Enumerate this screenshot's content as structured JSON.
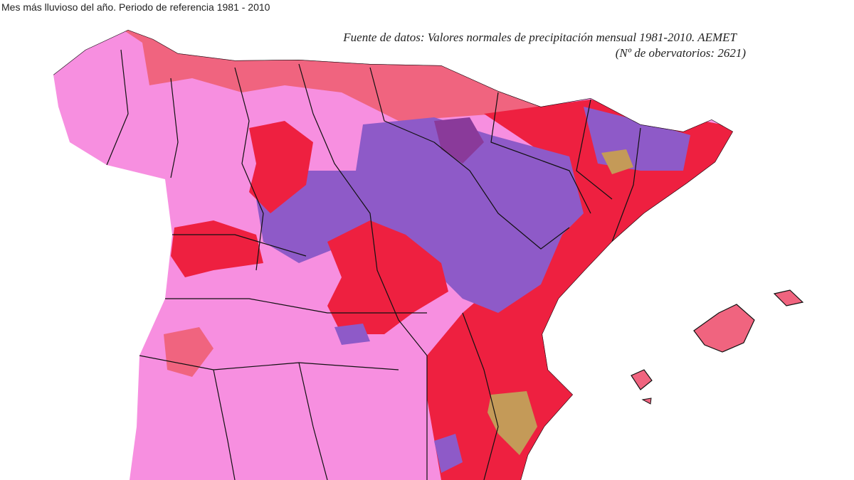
{
  "header": {
    "title": "Mes más lluvioso del año. Periodo de referencia 1981 - 2010"
  },
  "source": {
    "line1": "Fuente de datos: Valores normales de precipitación mensual 1981-2010. AEMET",
    "line2": "(Nº de obervatorios: 2621)"
  }
}
